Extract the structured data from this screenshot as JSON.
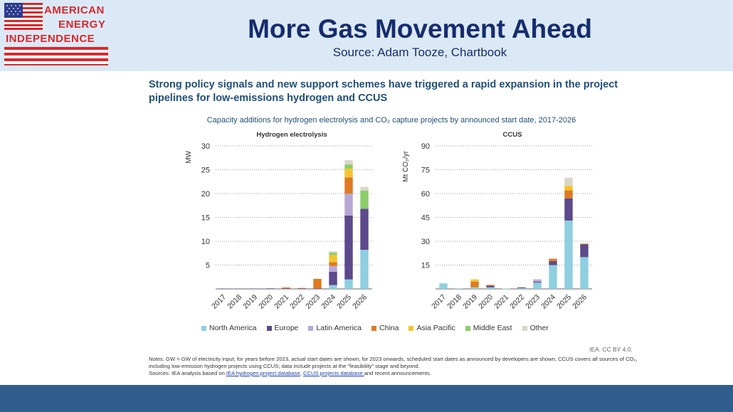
{
  "header": {
    "logo_lines": [
      "AMERICAN",
      "ENERGY",
      "INDEPENDENCE"
    ],
    "title": "More Gas Movement Ahead",
    "source": "Source: Adam Tooze, Chartbook"
  },
  "headline": "Strong policy signals and new support schemes have triggered a rapid expansion in the project pipelines for low-emissions hydrogen and CCUS",
  "figure_title": "Capacity additions for hydrogen electrolysis and CO₂ capture projects by announced start date, 2017-2026",
  "legend": [
    "North America",
    "Europe",
    "Latin America",
    "China",
    "Asia Pacific",
    "Middle East",
    "Other"
  ],
  "colors": {
    "North America": "#8ecfe0",
    "Europe": "#5c4a8c",
    "Latin America": "#b7a7d3",
    "China": "#e07a23",
    "Asia Pacific": "#f4c430",
    "Middle East": "#8bce6a",
    "Other": "#d9d6c7"
  },
  "credit": "IEA. CC BY 4.0.",
  "notes": {
    "line1": "Notes: GW = GW of electricity input; for years before 2023, actual start dates are shown; for 2023 onwards, scheduled start dates as announced by developers are shown; CCUS covers all sources of CO₂, including low-emission hydrogen projects using CCUS; data include projects at the \"feasibility\" stage and beyond.",
    "sources_prefix": "Sources: IEA analysis based on ",
    "link1": "IEA hydrogen project database",
    "sep": ", ",
    "link2": "CCUS projects database ",
    "sources_suffix": "and recent announcements."
  },
  "chart_data": [
    {
      "type": "bar",
      "stacked": true,
      "title": "Hydrogen electrolysis",
      "ylabel": "MW",
      "ylim": [
        0,
        30
      ],
      "yticks": [
        5,
        10,
        15,
        20,
        25,
        30
      ],
      "categories": [
        "2017",
        "2018",
        "2019",
        "2020",
        "2021",
        "2022",
        "2023",
        "2024",
        "2025",
        "2026"
      ],
      "series": [
        {
          "name": "North America",
          "values": [
            0,
            0,
            0,
            0,
            0,
            0,
            0,
            0.8,
            2.0,
            8.2
          ]
        },
        {
          "name": "Europe",
          "values": [
            0.05,
            0.05,
            0.05,
            0.1,
            0.1,
            0.1,
            0.1,
            2.8,
            13.4,
            8.6
          ]
        },
        {
          "name": "Latin America",
          "values": [
            0,
            0,
            0,
            0,
            0,
            0,
            0,
            1.2,
            4.6,
            0
          ]
        },
        {
          "name": "China",
          "values": [
            0,
            0,
            0,
            0,
            0.2,
            0.1,
            2.0,
            0.8,
            3.4,
            0
          ]
        },
        {
          "name": "Asia Pacific",
          "values": [
            0,
            0,
            0,
            0,
            0,
            0,
            0,
            1.5,
            1.8,
            0
          ]
        },
        {
          "name": "Middle East",
          "values": [
            0,
            0,
            0,
            0,
            0,
            0,
            0,
            0.5,
            0.9,
            3.8
          ]
        },
        {
          "name": "Other",
          "values": [
            0,
            0,
            0,
            0,
            0,
            0,
            0,
            0.3,
            0.9,
            0.8
          ]
        }
      ]
    },
    {
      "type": "bar",
      "stacked": true,
      "title": "CCUS",
      "ylabel": "Mt CO₂/yr",
      "ylim": [
        0,
        90
      ],
      "yticks": [
        15,
        30,
        45,
        60,
        75,
        90
      ],
      "categories": [
        "2017",
        "2018",
        "2019",
        "2020",
        "2021",
        "2022",
        "2023",
        "2024",
        "2025",
        "2026"
      ],
      "series": [
        {
          "name": "North America",
          "values": [
            3.5,
            0.3,
            1.0,
            1.0,
            0.2,
            0.5,
            4.0,
            15.0,
            43.0,
            20.0
          ]
        },
        {
          "name": "Europe",
          "values": [
            0,
            0,
            0,
            1.0,
            0,
            0.5,
            0.5,
            2.5,
            14.0,
            8.0
          ]
        },
        {
          "name": "Latin America",
          "values": [
            0,
            0,
            0,
            0,
            0,
            0,
            1.5,
            0,
            0,
            0
          ]
        },
        {
          "name": "China",
          "values": [
            0,
            0,
            3.5,
            0.5,
            0,
            0,
            0,
            1.5,
            5.0,
            0.5
          ]
        },
        {
          "name": "Asia Pacific",
          "values": [
            0,
            0,
            1.5,
            0,
            0,
            0,
            0,
            0,
            3.0,
            0
          ]
        },
        {
          "name": "Middle East",
          "values": [
            0,
            0,
            0,
            0,
            0,
            0,
            0,
            0,
            0,
            0
          ]
        },
        {
          "name": "Other",
          "values": [
            0,
            0,
            0,
            0,
            0,
            0,
            0,
            0,
            5.0,
            0
          ]
        }
      ]
    }
  ]
}
